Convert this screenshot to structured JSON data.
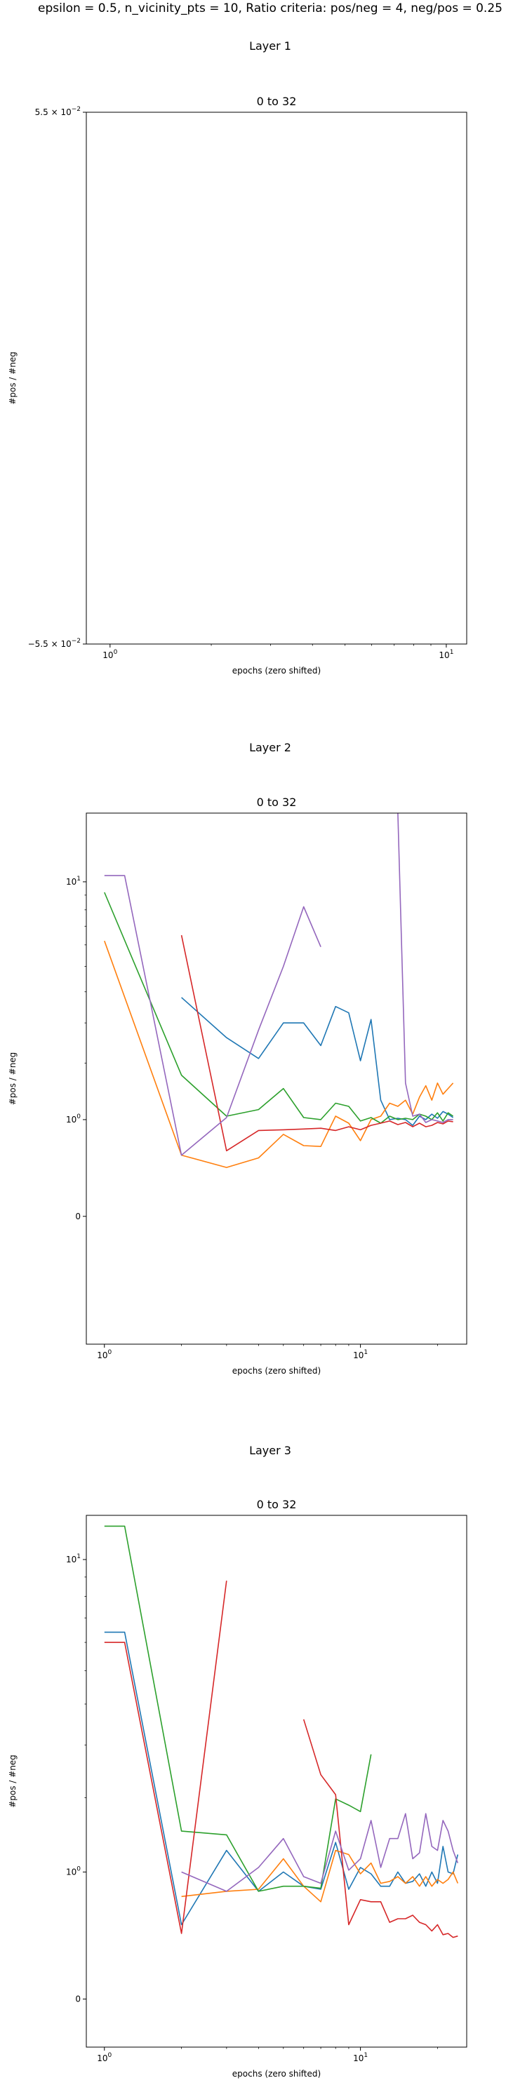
{
  "suptitle": "epsilon = 0.5, n_vicinity_pts = 10, Ratio criteria: pos/neg = 4, neg/pos = 0.25",
  "colors": {
    "blue": "#1f77b4",
    "orange": "#ff7f0e",
    "green": "#2ca02c",
    "red": "#d62728",
    "purple": "#9467bd"
  },
  "chart_data": [
    {
      "type": "line",
      "layer_title": "Layer 1",
      "title": "0 to 32",
      "xlabel": "epochs (zero shifted)",
      "ylabel": "#pos / #neg",
      "xscale": "log",
      "xlim": [
        0.85,
        11.5
      ],
      "xticks": [
        {
          "v": 1,
          "label": "10^0"
        },
        {
          "v": 10,
          "label": "10^1"
        }
      ],
      "yscale": "symlog",
      "ylim": [
        -0.055,
        0.055
      ],
      "yticks": [
        {
          "v": 0.055,
          "label": "5.5 × 10^−2"
        },
        {
          "v": -0.055,
          "label": "−5.5 × 10^−2"
        }
      ],
      "series": []
    },
    {
      "type": "line",
      "layer_title": "Layer 2",
      "title": "0 to 32",
      "xlabel": "epochs (zero shifted)",
      "ylabel": "#pos / #neg",
      "xscale": "log",
      "xlim": [
        0.85,
        26
      ],
      "xticks": [
        {
          "v": 1,
          "label": "10^0"
        },
        {
          "v": 10,
          "label": "10^1"
        }
      ],
      "yscale": "symlog",
      "ylim": [
        -1.5,
        17
      ],
      "yticks": [
        {
          "v": 10,
          "label": "10^1"
        },
        {
          "v": 1,
          "label": "10^0"
        },
        {
          "v": 0,
          "label": "0"
        }
      ],
      "series": [
        {
          "color": "blue",
          "segments": [
            [
              [
                2,
                3.8
              ],
              [
                3,
                2.6
              ],
              [
                4,
                2.1
              ],
              [
                5,
                3.0
              ],
              [
                6,
                3.0
              ],
              [
                7,
                2.4
              ],
              [
                8,
                3.5
              ],
              [
                9,
                3.3
              ],
              [
                10,
                2.05
              ],
              [
                11,
                3.1
              ],
              [
                12,
                1.3
              ],
              [
                13,
                1.0
              ],
              [
                14,
                1.02
              ],
              [
                15,
                1.0
              ],
              [
                16,
                0.92
              ],
              [
                17,
                1.05
              ],
              [
                18,
                1.0
              ],
              [
                19,
                1.08
              ],
              [
                20,
                1.02
              ],
              [
                21,
                1.12
              ],
              [
                22,
                1.08
              ],
              [
                23,
                1.03
              ]
            ]
          ]
        },
        {
          "color": "orange",
          "segments": [
            [
              [
                1,
                6.2
              ],
              [
                2,
                0.55
              ],
              [
                3,
                0.42
              ],
              [
                4,
                0.52
              ],
              [
                5,
                0.8
              ],
              [
                6,
                0.66
              ],
              [
                7,
                0.65
              ],
              [
                8,
                1.05
              ],
              [
                9,
                0.95
              ],
              [
                10,
                0.72
              ],
              [
                11,
                1.0
              ],
              [
                12,
                1.05
              ],
              [
                13,
                1.25
              ],
              [
                14,
                1.2
              ],
              [
                15,
                1.3
              ],
              [
                16,
                1.08
              ],
              [
                17,
                1.35
              ],
              [
                18,
                1.55
              ],
              [
                19,
                1.3
              ],
              [
                20,
                1.6
              ],
              [
                21,
                1.4
              ],
              [
                22,
                1.5
              ],
              [
                23,
                1.6
              ]
            ]
          ]
        },
        {
          "color": "green",
          "segments": [
            [
              [
                1,
                9.2
              ],
              [
                2,
                1.75
              ],
              [
                3,
                1.05
              ],
              [
                4,
                1.15
              ],
              [
                5,
                1.5
              ],
              [
                6,
                1.03
              ],
              [
                7,
                1.0
              ],
              [
                8,
                1.25
              ],
              [
                9,
                1.2
              ],
              [
                10,
                0.98
              ],
              [
                11,
                1.03
              ],
              [
                12,
                0.95
              ],
              [
                13,
                1.05
              ],
              [
                14,
                1.0
              ],
              [
                15,
                1.02
              ],
              [
                16,
                1.0
              ],
              [
                17,
                1.08
              ],
              [
                18,
                1.05
              ],
              [
                19,
                1.0
              ],
              [
                20,
                1.1
              ],
              [
                21,
                0.98
              ],
              [
                22,
                1.1
              ],
              [
                23,
                1.05
              ]
            ]
          ]
        },
        {
          "color": "red",
          "segments": [
            [
              [
                2,
                6.5
              ],
              [
                3,
                0.6
              ],
              [
                4,
                0.85
              ],
              [
                5,
                0.86
              ],
              [
                6,
                0.87
              ],
              [
                7,
                0.88
              ],
              [
                8,
                0.85
              ],
              [
                9,
                0.9
              ],
              [
                10,
                0.86
              ],
              [
                11,
                0.92
              ],
              [
                12,
                0.95
              ],
              [
                13,
                0.98
              ],
              [
                14,
                0.93
              ],
              [
                15,
                0.96
              ],
              [
                16,
                0.9
              ],
              [
                17,
                0.95
              ],
              [
                18,
                0.9
              ],
              [
                19,
                0.92
              ],
              [
                20,
                0.96
              ],
              [
                21,
                0.94
              ],
              [
                22,
                0.98
              ],
              [
                23,
                0.97
              ]
            ]
          ]
        },
        {
          "color": "purple",
          "segments": [
            [
              [
                1,
                10.5
              ],
              [
                1.2,
                10.5
              ],
              [
                2,
                0.55
              ],
              [
                3,
                1.03
              ],
              [
                4,
                2.8
              ],
              [
                5,
                5.0
              ],
              [
                6,
                8.2
              ],
              [
                7,
                5.9
              ]
            ],
            [
              [
                14,
                17.0
              ],
              [
                15,
                1.6
              ],
              [
                16,
                1.05
              ],
              [
                17,
                1.08
              ],
              [
                18,
                0.96
              ],
              [
                19,
                1.0
              ],
              [
                20,
                0.98
              ],
              [
                21,
                0.96
              ],
              [
                22,
                1.0
              ],
              [
                23,
                1.0
              ]
            ]
          ]
        }
      ]
    },
    {
      "type": "line",
      "layer_title": "Layer 3",
      "title": "0 to 32",
      "xlabel": "epochs (zero shifted)",
      "ylabel": "#pos / #neg",
      "xscale": "log",
      "xlim": [
        0.85,
        26
      ],
      "xticks": [
        {
          "v": 1,
          "label": "10^0"
        },
        {
          "v": 10,
          "label": "10^1"
        }
      ],
      "yscale": "symlog",
      "ylim": [
        -0.3,
        13
      ],
      "yticks": [
        {
          "v": 10,
          "label": "10^1"
        },
        {
          "v": 1,
          "label": "10^0"
        },
        {
          "v": 0,
          "label": "0"
        }
      ],
      "series": [
        {
          "color": "blue",
          "segments": [
            [
              [
                1,
                6.4
              ],
              [
                1.2,
                6.4
              ],
              [
                2,
                0.5
              ],
              [
                3,
                1.25
              ],
              [
                4,
                0.8
              ],
              [
                5,
                1.0
              ],
              [
                6,
                0.85
              ],
              [
                7,
                0.82
              ],
              [
                8,
                1.35
              ],
              [
                9,
                0.82
              ],
              [
                10,
                1.05
              ],
              [
                11,
                0.98
              ],
              [
                12,
                0.85
              ],
              [
                13,
                0.85
              ],
              [
                14,
                1.0
              ],
              [
                15,
                0.88
              ],
              [
                16,
                0.9
              ],
              [
                17,
                0.98
              ],
              [
                18,
                0.85
              ],
              [
                19,
                1.0
              ],
              [
                20,
                0.88
              ],
              [
                21,
                1.3
              ],
              [
                22,
                1.0
              ],
              [
                23,
                0.98
              ],
              [
                24,
                1.2
              ]
            ]
          ]
        },
        {
          "color": "orange",
          "segments": [
            [
              [
                2,
                0.75
              ],
              [
                3,
                0.8
              ],
              [
                4,
                0.82
              ],
              [
                5,
                1.15
              ],
              [
                6,
                0.85
              ],
              [
                7,
                0.7
              ],
              [
                8,
                1.25
              ],
              [
                9,
                1.2
              ],
              [
                10,
                0.98
              ],
              [
                11,
                1.1
              ],
              [
                12,
                0.88
              ],
              [
                13,
                0.9
              ],
              [
                14,
                0.95
              ],
              [
                15,
                0.88
              ],
              [
                16,
                0.95
              ],
              [
                17,
                0.85
              ],
              [
                18,
                0.95
              ],
              [
                19,
                0.85
              ],
              [
                20,
                0.92
              ],
              [
                21,
                0.88
              ],
              [
                22,
                0.92
              ],
              [
                23,
                1.0
              ],
              [
                24,
                0.88
              ]
            ]
          ]
        },
        {
          "color": "green",
          "segments": [
            [
              [
                1,
                12.2
              ],
              [
                1.2,
                12.2
              ],
              [
                2,
                1.5
              ],
              [
                3,
                1.45
              ],
              [
                4,
                0.8
              ],
              [
                5,
                0.85
              ],
              [
                6,
                0.85
              ],
              [
                7,
                0.83
              ],
              [
                8,
                1.98
              ],
              [
                9,
                1.88
              ],
              [
                10,
                1.78
              ],
              [
                11,
                2.8
              ]
            ]
          ]
        },
        {
          "color": "red",
          "segments": [
            [
              [
                1,
                6.0
              ],
              [
                1.2,
                6.0
              ],
              [
                2,
                0.43
              ],
              [
                3,
                8.8
              ]
            ],
            [
              [
                6,
                3.6
              ],
              [
                7,
                2.4
              ],
              [
                8,
                2.05
              ],
              [
                9,
                0.5
              ],
              [
                10,
                0.72
              ],
              [
                11,
                0.7
              ],
              [
                12,
                0.7
              ],
              [
                13,
                0.52
              ],
              [
                14,
                0.55
              ],
              [
                15,
                0.55
              ],
              [
                16,
                0.58
              ],
              [
                17,
                0.52
              ],
              [
                18,
                0.5
              ],
              [
                19,
                0.45
              ],
              [
                20,
                0.5
              ],
              [
                21,
                0.42
              ],
              [
                22,
                0.43
              ],
              [
                23,
                0.4
              ],
              [
                24,
                0.41
              ]
            ]
          ]
        },
        {
          "color": "purple",
          "segments": [
            [
              [
                2,
                1.0
              ],
              [
                3,
                0.8
              ],
              [
                4,
                1.05
              ],
              [
                5,
                1.4
              ],
              [
                6,
                0.95
              ],
              [
                7,
                0.88
              ],
              [
                8,
                1.5
              ],
              [
                9,
                1.02
              ],
              [
                10,
                1.15
              ],
              [
                11,
                1.65
              ],
              [
                12,
                1.05
              ],
              [
                13,
                1.4
              ],
              [
                14,
                1.4
              ],
              [
                15,
                1.75
              ],
              [
                16,
                1.15
              ],
              [
                17,
                1.22
              ],
              [
                18,
                1.75
              ],
              [
                19,
                1.3
              ],
              [
                20,
                1.25
              ],
              [
                21,
                1.65
              ],
              [
                22,
                1.5
              ],
              [
                23,
                1.25
              ],
              [
                24,
                1.1
              ]
            ]
          ]
        }
      ]
    }
  ]
}
